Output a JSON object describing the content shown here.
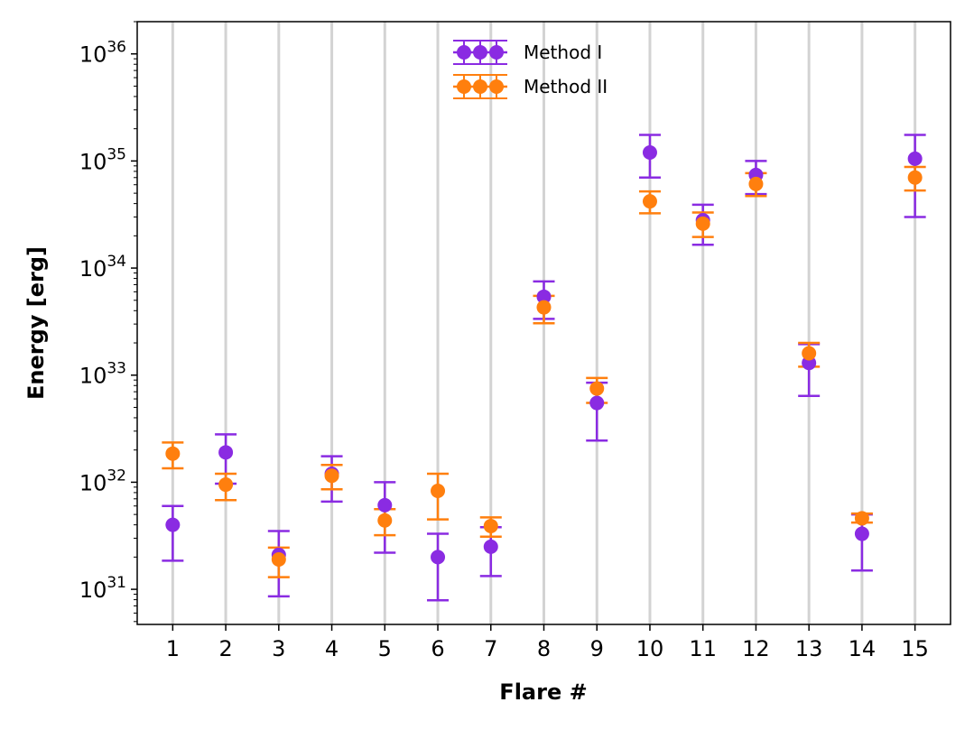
{
  "chart_data": {
    "type": "scatter",
    "title": "",
    "xlabel": "Flare #",
    "ylabel": "Energy [erg]",
    "x": [
      1,
      2,
      3,
      4,
      5,
      6,
      7,
      8,
      9,
      10,
      11,
      12,
      13,
      14,
      15
    ],
    "x_tick_labels": [
      "1",
      "2",
      "3",
      "4",
      "5",
      "6",
      "7",
      "8",
      "9",
      "10",
      "11",
      "12",
      "13",
      "14",
      "15"
    ],
    "y_scale": "log",
    "ylim": [
      4.7e+30,
      2e+36
    ],
    "y_ticks": [
      1e+31,
      1e+32,
      1e+33,
      1e+34,
      1e+35,
      1e+36
    ],
    "y_tick_labels": [
      {
        "base": "10",
        "exp": "31"
      },
      {
        "base": "10",
        "exp": "32"
      },
      {
        "base": "10",
        "exp": "33"
      },
      {
        "base": "10",
        "exp": "34"
      },
      {
        "base": "10",
        "exp": "35"
      },
      {
        "base": "10",
        "exp": "36"
      }
    ],
    "grid": "vertical lines at each flare",
    "legend_position": "top-center",
    "series": [
      {
        "name": "Method I",
        "color": "#8a2be2",
        "values": [
          4e+31,
          1.9e+32,
          2.1e+31,
          1.2e+32,
          6.1e+31,
          2e+31,
          2.5e+31,
          5.4e+33,
          5.5e+32,
          1.2e+35,
          2.8e+34,
          7.4e+34,
          1.3e+33,
          3.3e+31,
          1.05e+35
        ],
        "lower": [
          1.85e+31,
          9.7e+31,
          8.6e+30,
          6.6e+31,
          2.2e+31,
          7.9e+30,
          1.33e+31,
          3.35e+33,
          2.45e+32,
          7e+34,
          1.65e+34,
          4.9e+34,
          6.4e+32,
          1.5e+31,
          3e+34
        ],
        "upper": [
          6e+31,
          2.8e+32,
          3.5e+31,
          1.75e+32,
          1e+32,
          3.3e+31,
          3.8e+31,
          7.5e+33,
          8.5e+32,
          1.75e+35,
          3.9e+34,
          1e+35,
          1.95e+33,
          5e+31,
          1.75e+35
        ]
      },
      {
        "name": "Method II",
        "color": "#ff7f0e",
        "values": [
          1.85e+32,
          9.5e+31,
          1.9e+31,
          1.15e+32,
          4.4e+31,
          8.3e+31,
          3.9e+31,
          4.3e+33,
          7.5e+32,
          4.2e+34,
          2.6e+34,
          6.1e+34,
          1.6e+33,
          4.6e+31,
          7e+34
        ],
        "lower": [
          1.35e+32,
          6.8e+31,
          1.3e+31,
          8.6e+31,
          3.2e+31,
          4.5e+31,
          3.1e+31,
          3.05e+33,
          5.5e+32,
          3.25e+34,
          1.95e+34,
          4.7e+34,
          1.2e+33,
          4.2e+31,
          5.3e+34
        ],
        "upper": [
          2.35e+32,
          1.2e+32,
          2.45e+31,
          1.45e+32,
          5.6e+31,
          1.2e+32,
          4.7e+31,
          5.5e+33,
          9.4e+32,
          5.2e+34,
          3.3e+34,
          7.7e+34,
          2e+33,
          5.1e+31,
          8.8e+34
        ]
      }
    ]
  }
}
